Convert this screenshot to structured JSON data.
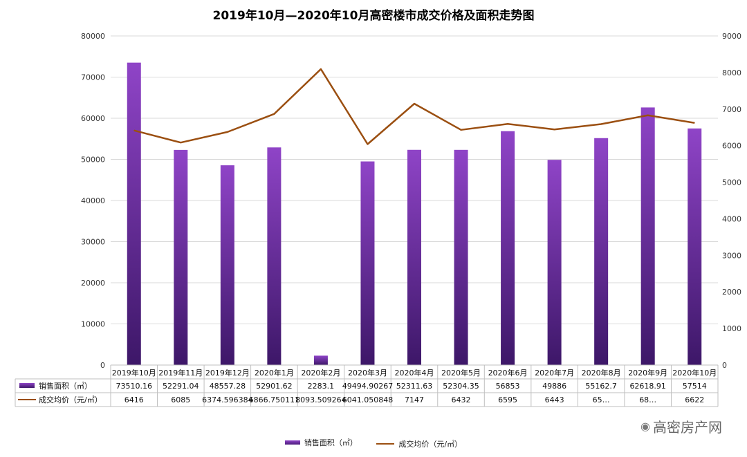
{
  "title": "2019年10月—2020年10月高密楼市成交价格及面积走势图",
  "watermark": {
    "text": "高密房产网",
    "icon": "wechat-icon"
  },
  "colors": {
    "bar_top": "#8f44c7",
    "bar_bottom": "#3d1768",
    "line": "#9b4f11",
    "grid": "#d9d9d9"
  },
  "chart_data": {
    "type": "bar+line",
    "categories": [
      "2019年10月",
      "2019年11月",
      "2019年12月",
      "2020年1月",
      "2020年2月",
      "2020年3月",
      "2020年4月",
      "2020年5月",
      "2020年6月",
      "2020年7月",
      "2020年8月",
      "2020年9月",
      "2020年10月"
    ],
    "series": [
      {
        "name": "销售面积（㎡）",
        "type": "bar",
        "axis": "left",
        "values": [
          73510.16,
          52291.04,
          48557.28,
          52901.62,
          2283.1,
          49494.90267,
          52311.63,
          52304.35,
          56853,
          49886,
          55162.7,
          62618.91,
          57514
        ],
        "labels": [
          "73510.16",
          "52291.04",
          "48557.28",
          "52901.62",
          "2283.1",
          "49494.90267",
          "52311.63",
          "52304.35",
          "56853",
          "49886",
          "55162.7",
          "62618.91",
          "57514"
        ]
      },
      {
        "name": "成交均价（元/㎡）",
        "type": "line",
        "axis": "right",
        "values": [
          6416,
          6085,
          6374.596384,
          6866.750111,
          8093.509264,
          6041.050848,
          7147,
          6432,
          6595,
          6443,
          6590,
          6830,
          6622
        ],
        "labels": [
          "6416",
          "6085",
          "6374.596384",
          "6866.750111",
          "8093.509264",
          "6041.050848",
          "7147",
          "6432",
          "6595",
          "6443",
          "65…",
          "68…",
          "6622"
        ]
      }
    ],
    "y_left": {
      "min": 0,
      "max": 80000,
      "ticks": [
        "0",
        "10000",
        "20000",
        "30000",
        "40000",
        "50000",
        "60000",
        "70000",
        "80000"
      ]
    },
    "y_right": {
      "min": 0,
      "max": 9000,
      "ticks": [
        "0",
        "1000",
        "2000",
        "3000",
        "4000",
        "5000",
        "6000",
        "7000",
        "8000",
        "9000"
      ]
    },
    "grid": true,
    "legend": {
      "position": "bottom",
      "items": [
        "销售面积（㎡）",
        "成交均价（元/㎡）"
      ]
    }
  }
}
